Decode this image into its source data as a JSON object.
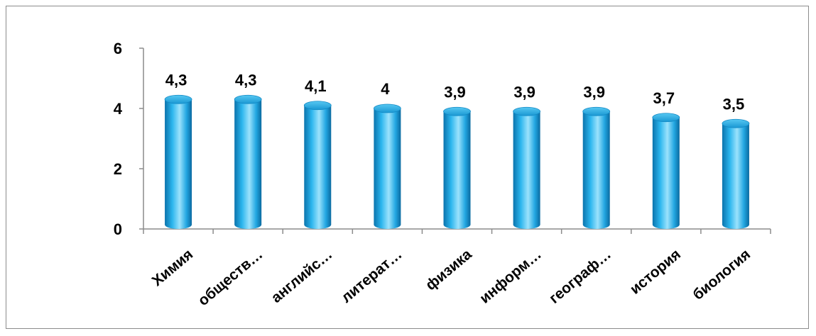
{
  "chart_data": {
    "type": "bar",
    "categories": [
      "Химия",
      "обществ…",
      "английс…",
      "литерат…",
      "физика",
      "информ…",
      "географ…",
      "история",
      "биология"
    ],
    "values": [
      4.3,
      4.3,
      4.1,
      4,
      3.9,
      3.9,
      3.9,
      3.7,
      3.5
    ],
    "data_labels": [
      "4,3",
      "4,3",
      "4,1",
      "4",
      "3,9",
      "3,9",
      "3,9",
      "3,7",
      "3,5"
    ],
    "ylim": [
      0,
      6
    ],
    "yticks": [
      0,
      2,
      4,
      6
    ],
    "ytick_labels": [
      "0",
      "2",
      "4",
      "6"
    ],
    "title": "",
    "xlabel": "",
    "ylabel": "",
    "grid": false,
    "legend": "none",
    "bar_color": "#1aa5e0",
    "bar_highlight": "#8fdcfb",
    "bar_shadow": "#0a6fa6"
  }
}
